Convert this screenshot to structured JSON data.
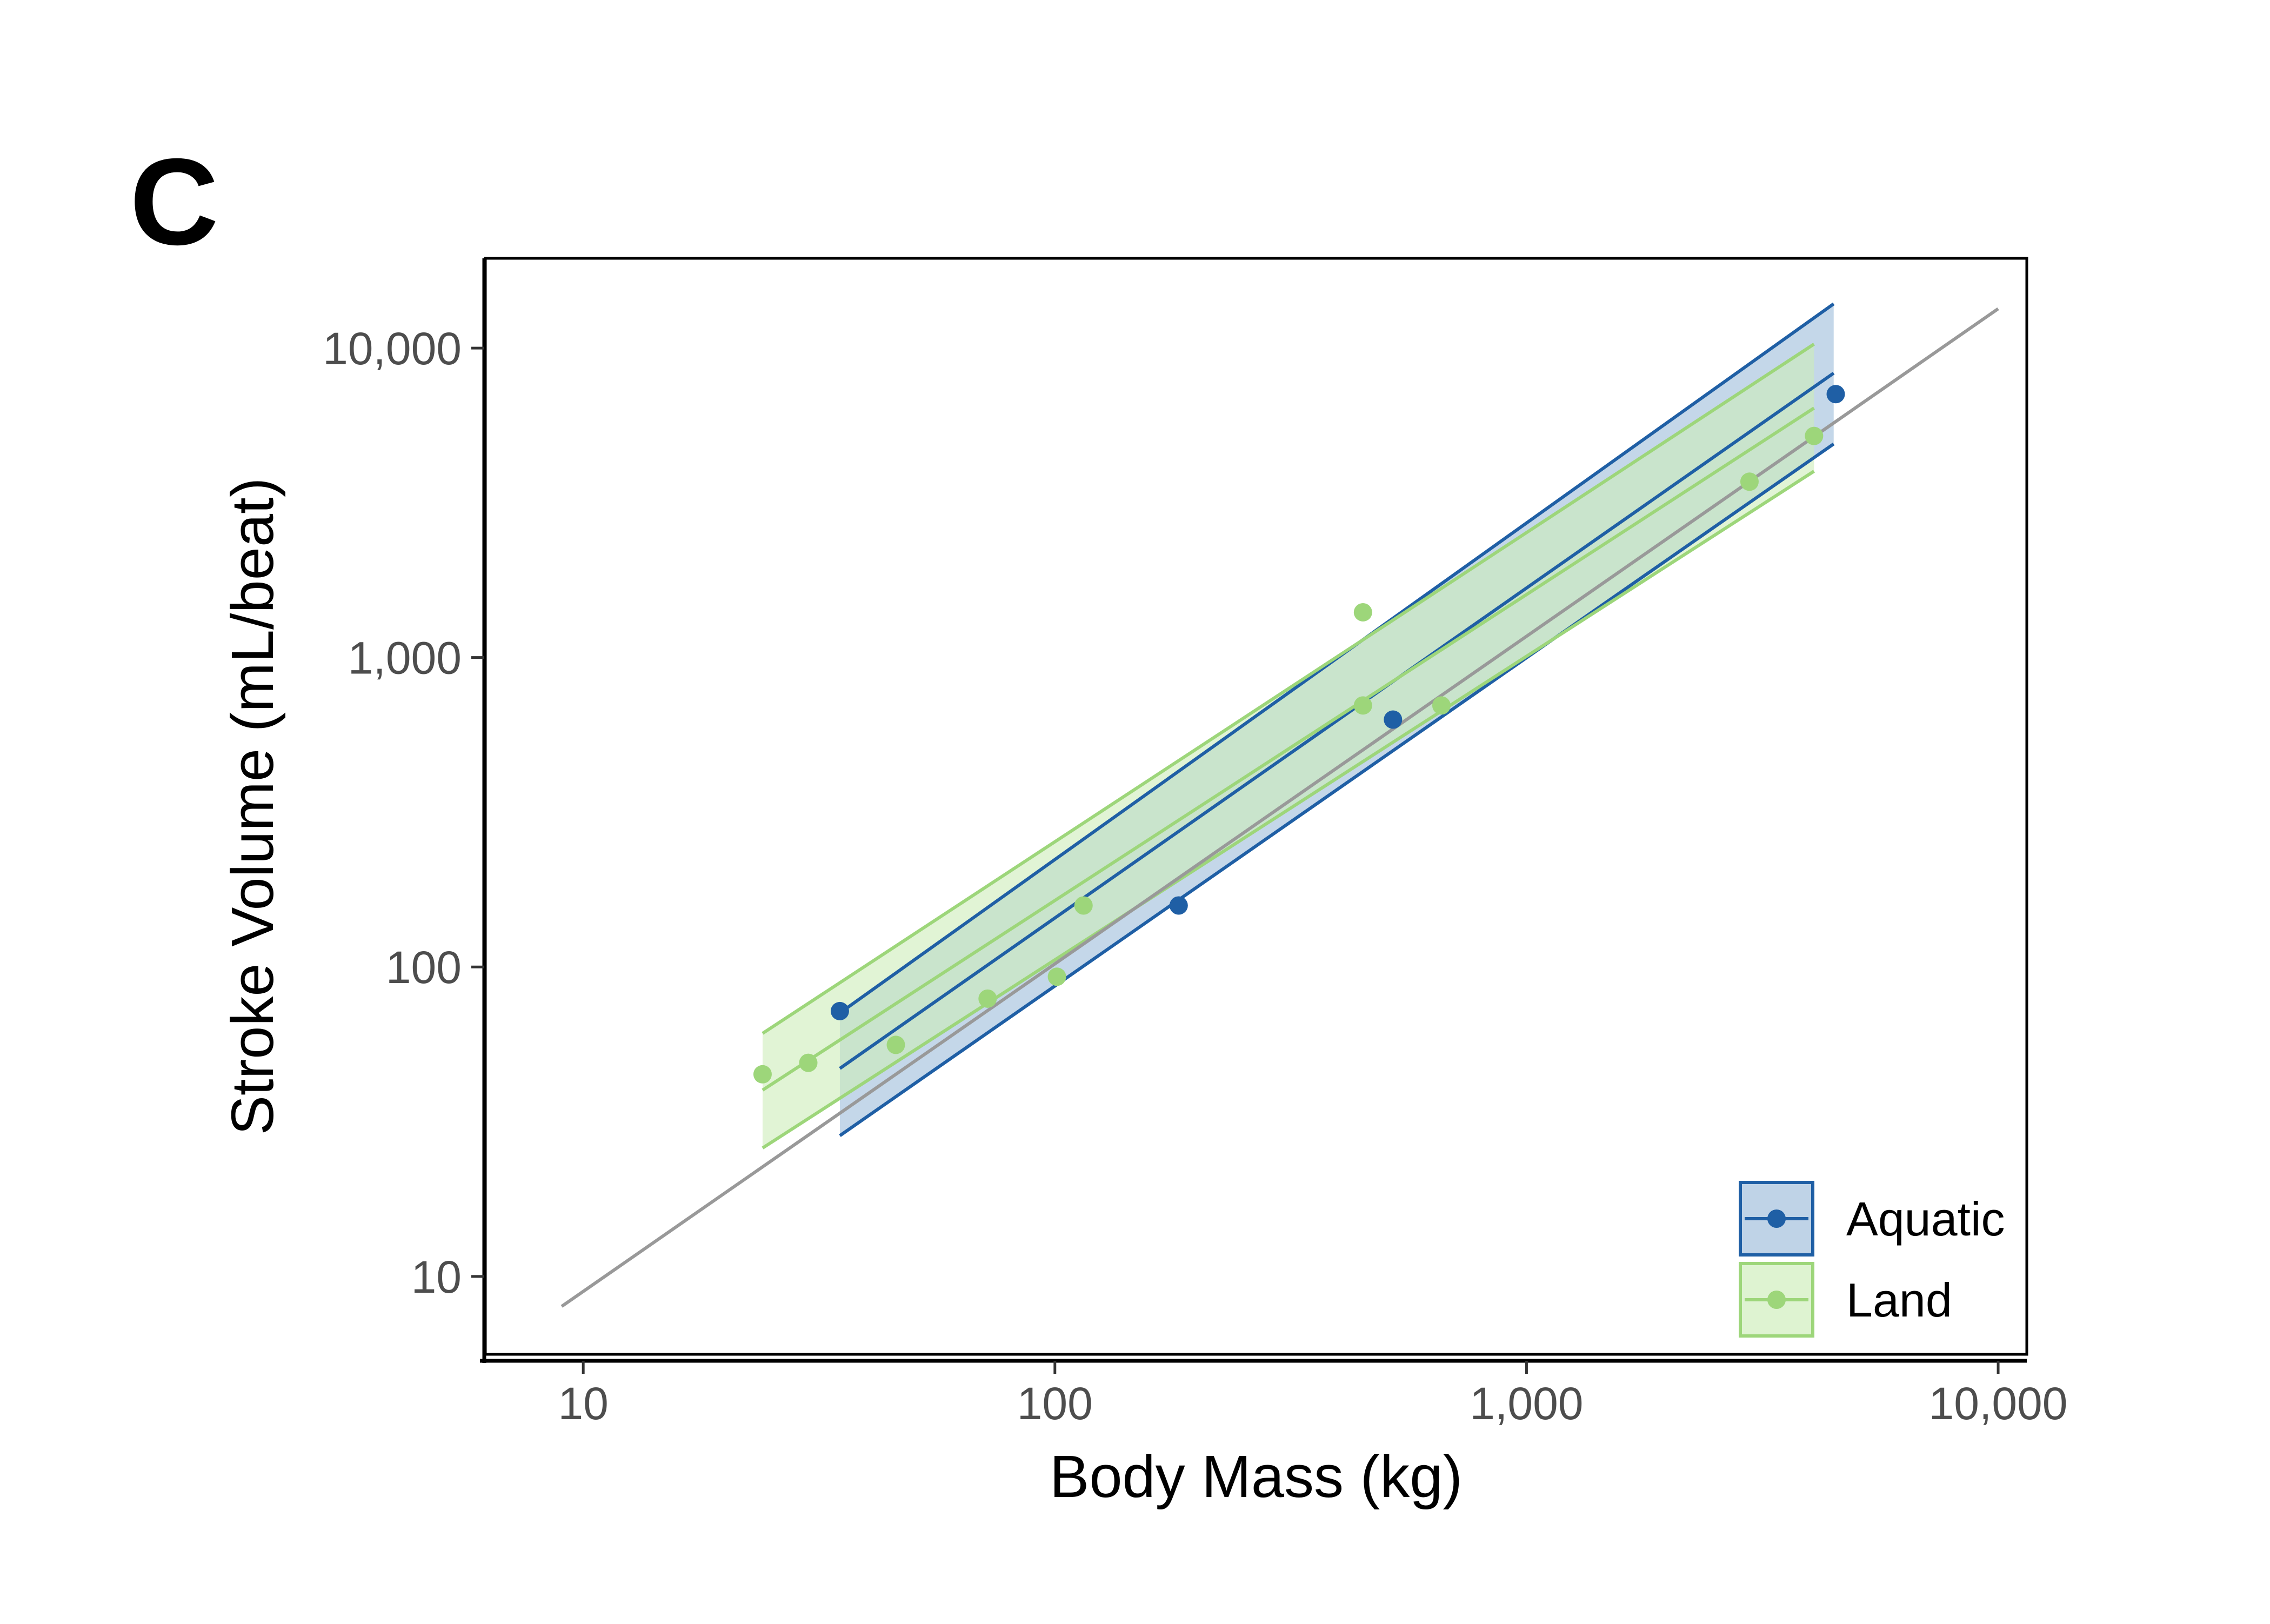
{
  "panel_label": "C",
  "chart_data": {
    "type": "scatter",
    "xlabel": "Body Mass (kg)",
    "ylabel": "Stroke Volume (mL/beat)",
    "x_scale": "log",
    "y_scale": "log",
    "xlim": [
      6.2,
      11500
    ],
    "ylim": [
      5.6,
      19500
    ],
    "x_ticks": [
      10,
      100,
      1000,
      10000
    ],
    "x_tick_labels": [
      "10",
      "100",
      "1,000",
      "10,000"
    ],
    "y_ticks": [
      10,
      100,
      1000,
      10000
    ],
    "y_tick_labels": [
      "10",
      "100",
      "1,000",
      "10,000"
    ],
    "grid": false,
    "legend": {
      "position": "bottom-right",
      "entries": [
        {
          "label": "Aquatic",
          "color": "#1f5fa5",
          "fill": "#9dbcda"
        },
        {
          "label": "Land",
          "color": "#9dd67a",
          "fill": "#cdecb9"
        }
      ]
    },
    "reference_line": {
      "color": "#999999",
      "x": [
        9,
        10000
      ],
      "y": [
        8,
        13400
      ]
    },
    "series": [
      {
        "name": "Aquatic",
        "color": "#1f5fa5",
        "band_fill": "#9dbcda",
        "points": [
          {
            "x": 35,
            "y": 72
          },
          {
            "x": 183,
            "y": 158
          },
          {
            "x": 521,
            "y": 630
          },
          {
            "x": 4525,
            "y": 7100
          }
        ],
        "fit": {
          "x": [
            35,
            4480
          ],
          "y": [
            47,
            8300
          ],
          "lower": [
            28.5,
            4900
          ],
          "upper": [
            71,
            13900
          ]
        }
      },
      {
        "name": "Land",
        "color": "#9dd67a",
        "band_fill": "#cdecb9",
        "points": [
          {
            "x": 24,
            "y": 45
          },
          {
            "x": 30,
            "y": 49
          },
          {
            "x": 46,
            "y": 56
          },
          {
            "x": 72,
            "y": 79
          },
          {
            "x": 101,
            "y": 93
          },
          {
            "x": 115,
            "y": 158
          },
          {
            "x": 450,
            "y": 1400
          },
          {
            "x": 450,
            "y": 700
          },
          {
            "x": 660,
            "y": 700
          },
          {
            "x": 2970,
            "y": 3700
          },
          {
            "x": 4070,
            "y": 5200
          }
        ],
        "fit": {
          "x": [
            24,
            4070
          ],
          "y": [
            40,
            6400
          ],
          "lower": [
            26,
            4000
          ],
          "upper": [
            61,
            10300
          ]
        }
      }
    ]
  }
}
